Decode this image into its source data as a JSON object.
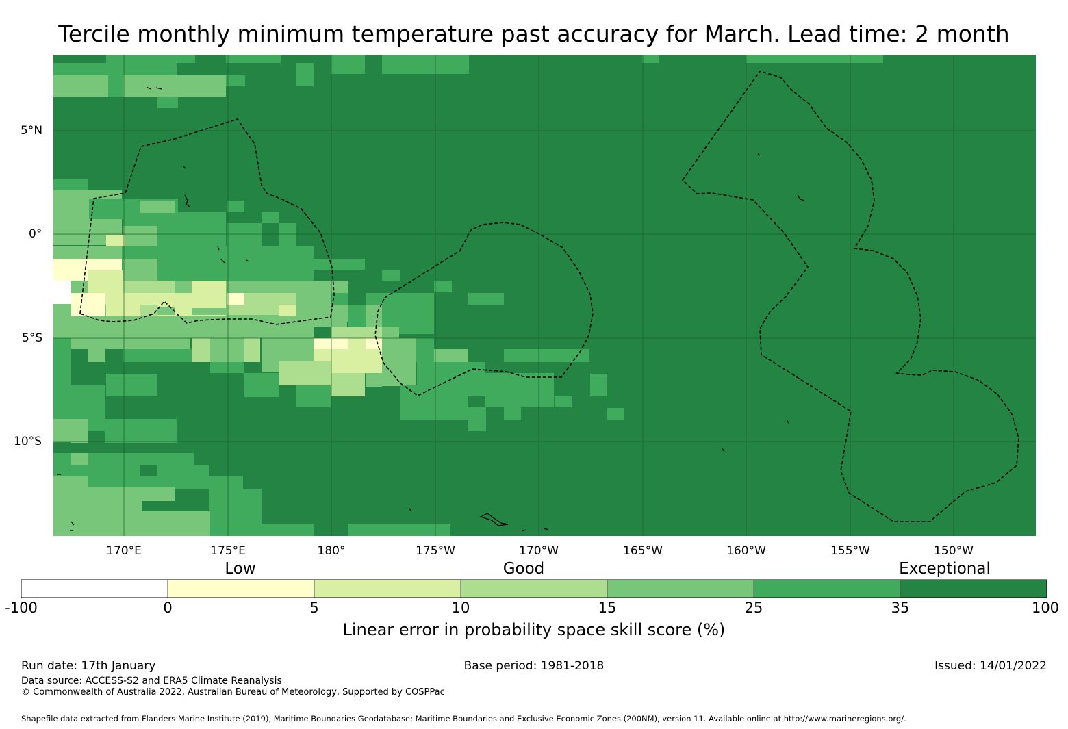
{
  "title": "Tercile monthly minimum temperature past accuracy for March. Lead time: 2 month",
  "map": {
    "lon_labels": [
      "170°E",
      "175°E",
      "180°",
      "175°W",
      "170°W",
      "165°W",
      "160°W",
      "155°W",
      "150°W"
    ],
    "lat_labels": [
      "5°N",
      "0°",
      "5°S",
      "10°S"
    ],
    "colors": {
      "c0": "#ffffff",
      "c1": "#ffffcc",
      "c2": "#d9f0a3",
      "c3": "#addd8e",
      "c4": "#78c679",
      "c5": "#41ab5d",
      "c6": "#238443"
    }
  },
  "colorbar": {
    "category_labels": [
      "Low",
      "Good",
      "Exceptional"
    ],
    "ticks": [
      "-100",
      "0",
      "5",
      "10",
      "15",
      "25",
      "35",
      "100"
    ],
    "label": "Linear error in probability space skill score (%)"
  },
  "footer": {
    "run_date": "Run date: 17th January",
    "base_period": "Base period: 1981-2018",
    "issued": "Issued: 14/01/2022",
    "data_source": "Data source: ACCESS-S2 and ERA5 Climate Reanalysis",
    "copyright": "© Commonwealth of Australia 2022, Australian Bureau of Meteorology, Supported by COSPPac",
    "shapefile": "Shapefile data extracted from Flanders Marine Institute (2019), Maritime Boundaries Geodatabase: Maritime Boundaries and Exclusive Economic Zones (200NM), version 11. Available online at http://www.marineregions.org/."
  }
}
